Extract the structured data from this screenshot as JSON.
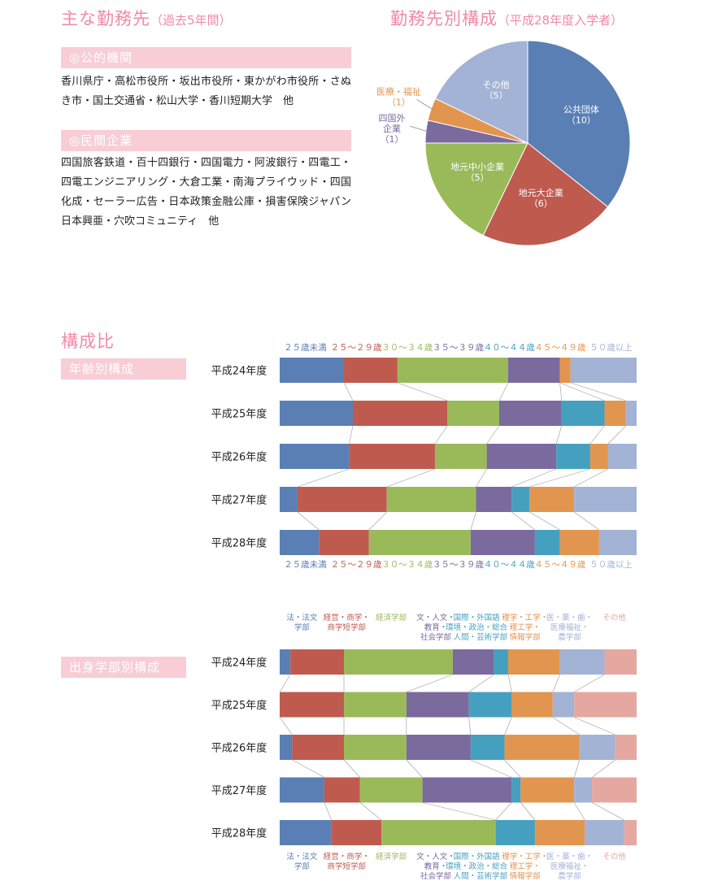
{
  "employment": {
    "title": "主な勤務先",
    "subtitle": "（過去5年間）",
    "public_header": "◎公的機関",
    "public_text": "香川県庁・高松市役所・坂出市役所・東かがわ市役所・さぬき市・国土交通省・松山大学・香川短期大学　他",
    "private_header": "◎民間企業",
    "private_text": "四国旅客鉄道・百十四銀行・四国電力・阿波銀行・四電工・四電エンジニアリング・大倉工業・南海プライウッド・四国化成・セーラー広告・日本政策金融公庫・損害保険ジャパン日本興亜・穴吹コミュニティ　他"
  },
  "pie_section": {
    "title": "勤務先別構成",
    "subtitle": "（平成28年度入学者）"
  },
  "composition": {
    "title": "構成比",
    "age_band": "年齢別構成",
    "faculty_band": "出身学部別構成"
  },
  "chart_data": [
    {
      "type": "pie",
      "title": "勤務先別構成",
      "slices": [
        {
          "name": "公共団体",
          "value": 10,
          "label": "（10）",
          "color": "#5a7fb5"
        },
        {
          "name": "地元大企業",
          "value": 6,
          "label": "（6）",
          "color": "#bf5a4f"
        },
        {
          "name": "地元中小企業",
          "value": 5,
          "label": "（5）",
          "color": "#9aba5a"
        },
        {
          "name": "四国外企業",
          "value": 1,
          "label": "（1）",
          "color": "#7a6a9e"
        },
        {
          "name": "医療・福祉",
          "value": 1,
          "label": "（1）",
          "color": "#e2954f"
        },
        {
          "name": "その他",
          "value": 5,
          "label": "（5）",
          "color": "#a3b3d6"
        }
      ]
    },
    {
      "type": "bar",
      "orientation": "horizontal-stacked-100",
      "title": "年齢別構成",
      "categories": [
        "平成24年度",
        "平成25年度",
        "平成26年度",
        "平成27年度",
        "平成28年度"
      ],
      "series": [
        {
          "name": "２５歳未満",
          "color": "#5a7fb5",
          "values": [
            18,
            20.5,
            19.5,
            5,
            11
          ]
        },
        {
          "name": "２５～２９歳",
          "color": "#bf5a4f",
          "values": [
            15,
            26.5,
            24,
            25,
            14
          ]
        },
        {
          "name": "３０～３４歳",
          "color": "#9aba5a",
          "values": [
            31,
            14.5,
            14.5,
            25,
            28.5
          ]
        },
        {
          "name": "３５～３９歳",
          "color": "#7a6a9e",
          "values": [
            14.5,
            17.5,
            19.5,
            10,
            18
          ]
        },
        {
          "name": "４０～４４歳",
          "color": "#45a0c0",
          "values": [
            0,
            12,
            9.5,
            5,
            7
          ]
        },
        {
          "name": "４５～４９歳",
          "color": "#e2954f",
          "values": [
            3,
            6,
            5,
            12.5,
            11
          ]
        },
        {
          "name": "５０歳以上",
          "color": "#a3b3d6",
          "values": [
            18.5,
            3,
            8,
            17.5,
            10.5
          ]
        }
      ]
    },
    {
      "type": "bar",
      "orientation": "horizontal-stacked-100",
      "title": "出身学部別構成",
      "categories": [
        "平成24年度",
        "平成25年度",
        "平成26年度",
        "平成27年度",
        "平成28年度"
      ],
      "series": [
        {
          "name": "法・法文学部",
          "lines": [
            "法・法文",
            "学部"
          ],
          "color": "#5a7fb5",
          "values": [
            3,
            0,
            3.5,
            12.5,
            14.5
          ]
        },
        {
          "name": "経営・商学・商学短学部",
          "lines": [
            "経営・商学・",
            "商学短学部"
          ],
          "color": "#bf5a4f",
          "values": [
            15,
            18,
            14.5,
            10,
            14
          ]
        },
        {
          "name": "経済学部",
          "lines": [
            "経済学部"
          ],
          "color": "#9aba5a",
          "values": [
            30.5,
            17.5,
            17.5,
            17.5,
            32
          ]
        },
        {
          "name": "文・人文・教育・社会学部",
          "lines": [
            "文・人文・",
            "教育・",
            "社会学部"
          ],
          "color": "#7a6a9e",
          "values": [
            11.5,
            17.5,
            18,
            25,
            0
          ]
        },
        {
          "name": "国際・外国語・環境・政治・総合・人間・芸術学部",
          "lines": [
            "国際・外国語・",
            "環境・政治・総合・",
            "人間・芸術学部"
          ],
          "color": "#45a0c0",
          "values": [
            4,
            12,
            9.5,
            2.5,
            11
          ]
        },
        {
          "name": "理学・工学・理工学・情報学部",
          "lines": [
            "理学・工学・",
            "理工学・",
            "情報学部"
          ],
          "color": "#e2954f",
          "values": [
            14.5,
            11.5,
            21,
            15,
            14
          ]
        },
        {
          "name": "医・薬・歯・医療福祉・農学部",
          "lines": [
            "医・薬・歯・",
            "医療福祉・",
            "農学部"
          ],
          "color": "#a3b3d6",
          "values": [
            12.5,
            6,
            10,
            5,
            11
          ]
        },
        {
          "name": "その他",
          "lines": [
            "その他"
          ],
          "color": "#e5a8a0",
          "values": [
            9,
            17.5,
            6,
            12.5,
            3.5
          ]
        }
      ]
    }
  ]
}
